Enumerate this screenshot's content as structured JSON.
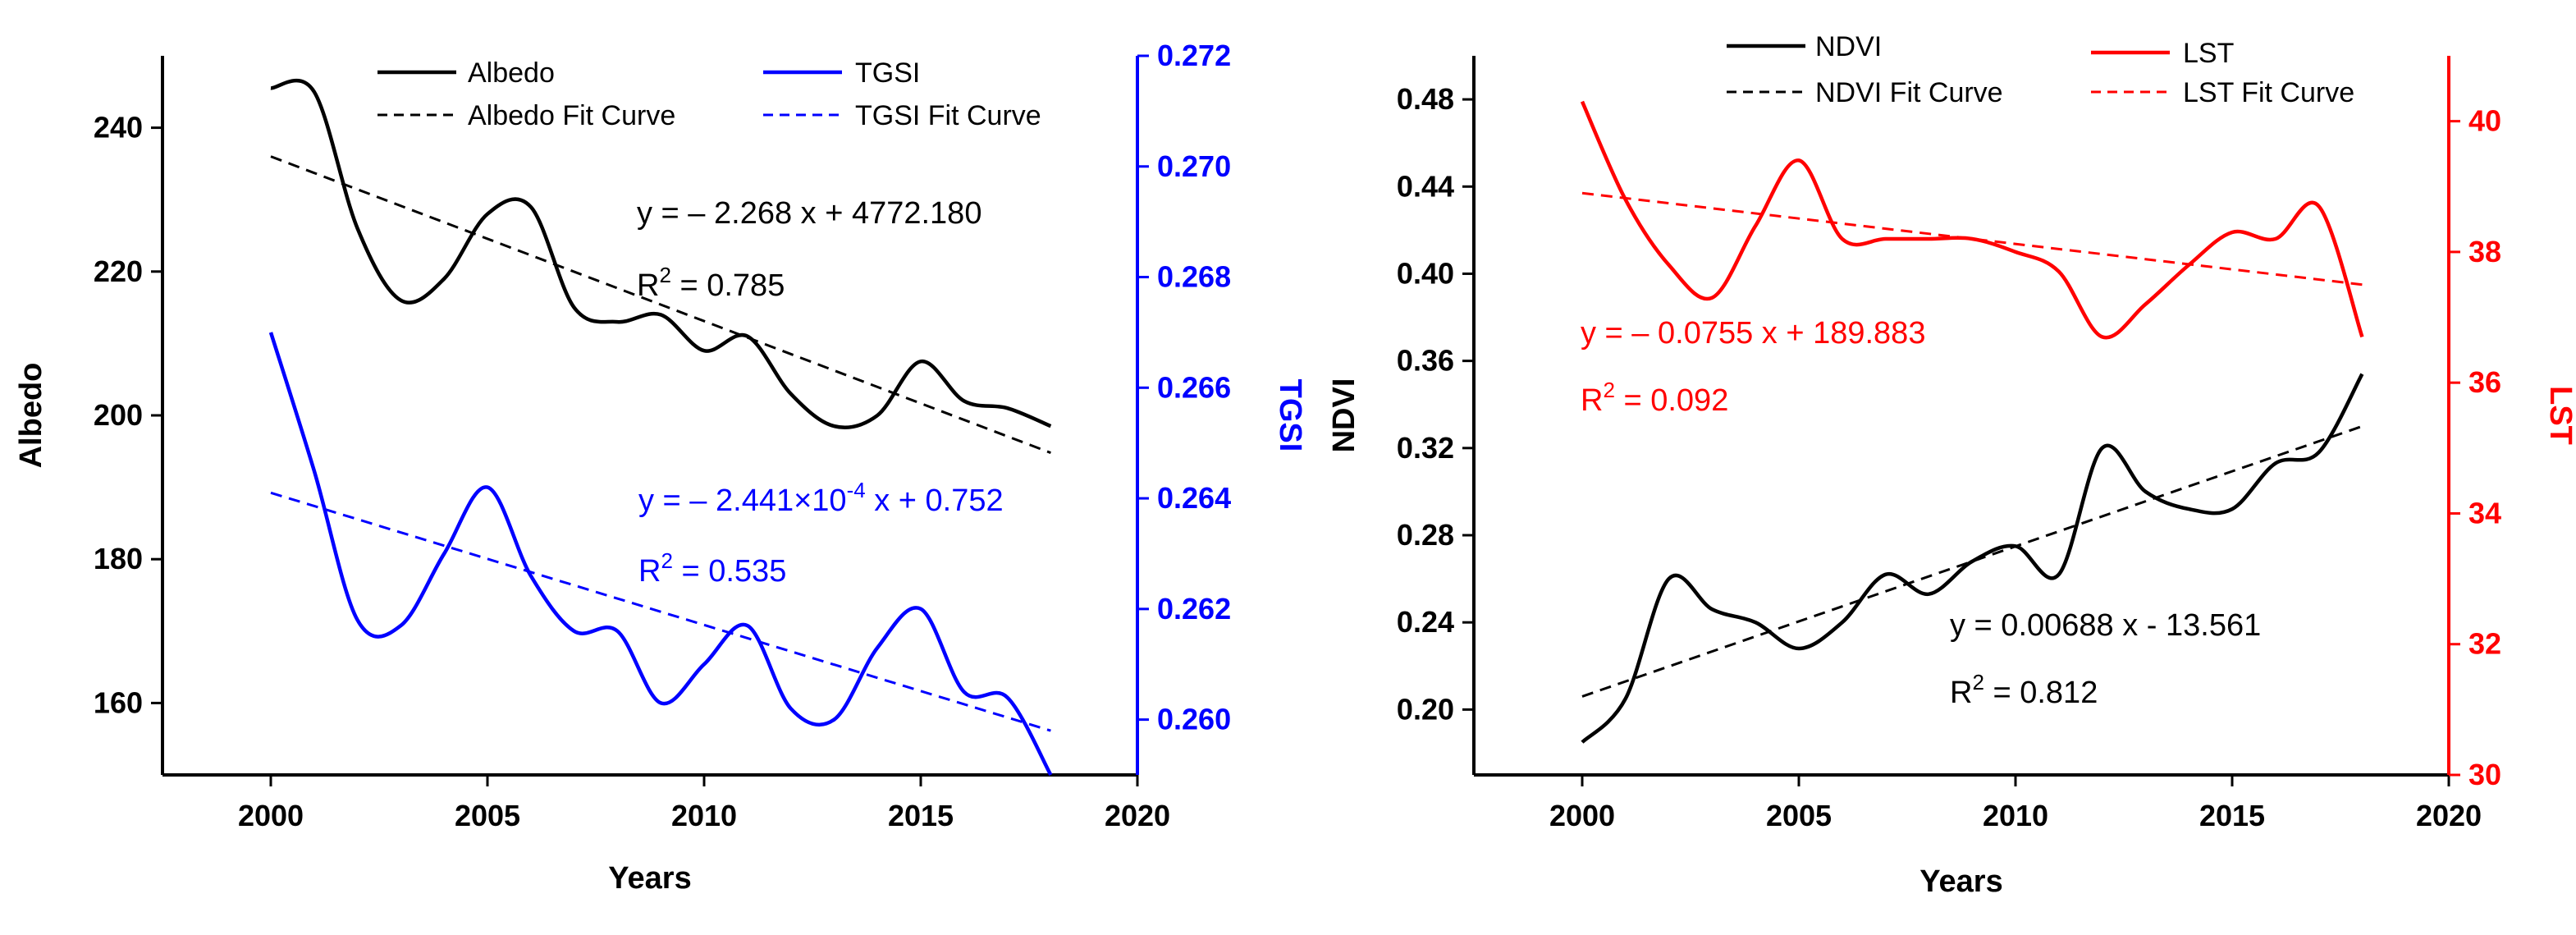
{
  "chart_data": [
    {
      "type": "line",
      "xlabel": "Years",
      "ylabel": "Albedo",
      "y2label": "TGSI",
      "xlim": [
        1997.5,
        2020
      ],
      "ylim": [
        150,
        250
      ],
      "y2lim": [
        0.259,
        0.272
      ],
      "xticks": [
        2000,
        2005,
        2010,
        2015,
        2020
      ],
      "yticks": [
        160,
        180,
        200,
        220,
        240
      ],
      "y2ticks": [
        "0.260",
        "0.262",
        "0.264",
        "0.266",
        "0.268",
        "0.270",
        "0.272"
      ],
      "legend_position": "top",
      "series": [
        {
          "name": "Albedo",
          "axis": "left",
          "style": "solid",
          "color": "#000000",
          "x": [
            2000,
            2001,
            2002,
            2003,
            2004,
            2005,
            2006,
            2007,
            2008,
            2009,
            2010,
            2011,
            2012,
            2013,
            2014,
            2015,
            2016,
            2017,
            2018
          ],
          "values": [
            245.5,
            245,
            226,
            216,
            219,
            228,
            229,
            215,
            213,
            214,
            209,
            211,
            203,
            198.5,
            200,
            207.5,
            202,
            201,
            198.5
          ]
        },
        {
          "name": "Albedo Fit Curve",
          "axis": "left",
          "style": "dashed",
          "color": "#000000",
          "x": [
            2000,
            2018
          ],
          "values": [
            236,
            194.8
          ]
        },
        {
          "name": "TGSI",
          "axis": "right",
          "style": "solid",
          "color": "#0000ff",
          "x": [
            2000,
            2001,
            2002,
            2003,
            2004,
            2005,
            2006,
            2007,
            2008,
            2009,
            2010,
            2011,
            2012,
            2013,
            2014,
            2015,
            2016,
            2017,
            2018
          ],
          "values": [
            0.267,
            0.2645,
            0.2618,
            0.2617,
            0.263,
            0.2642,
            0.2626,
            0.2616,
            0.2616,
            0.2603,
            0.261,
            0.2617,
            0.2602,
            0.26,
            0.2613,
            0.262,
            0.2605,
            0.2604,
            0.259
          ]
        },
        {
          "name": "TGSI Fit Curve",
          "axis": "right",
          "style": "dashed",
          "color": "#0000ff",
          "x": [
            2000,
            2018
          ],
          "values": [
            0.2641,
            0.2598
          ]
        }
      ],
      "annotations": [
        {
          "text": "y = – 2.268 x + 4772.180",
          "color": "#000000"
        },
        {
          "text": "R",
          "sup": "2",
          "rest": " = 0.785",
          "color": "#000000"
        },
        {
          "text": "y = – 2.441×10",
          "sup": "-4",
          "rest": " x + 0.752",
          "color": "#0000ff"
        },
        {
          "text": "R",
          "sup": "2",
          "rest": " = 0.535",
          "color": "#0000ff"
        }
      ],
      "colors": {
        "left_axis": "#000000",
        "right_axis": "#0000ff"
      }
    },
    {
      "type": "line",
      "xlabel": "Years",
      "ylabel": "NDVI",
      "y2label": "LST",
      "xlim": [
        1997.5,
        2020
      ],
      "ylim": [
        0.17,
        0.5
      ],
      "y2lim": [
        30,
        41
      ],
      "xticks": [
        2000,
        2005,
        2010,
        2015,
        2020
      ],
      "yticks": [
        "0.20",
        "0.24",
        "0.28",
        "0.32",
        "0.36",
        "0.40",
        "0.44",
        "0.48"
      ],
      "y2ticks": [
        30,
        32,
        34,
        36,
        38,
        40
      ],
      "legend_position": "top",
      "series": [
        {
          "name": "NDVI",
          "axis": "left",
          "style": "solid",
          "color": "#000000",
          "x": [
            2000,
            2001,
            2002,
            2003,
            2004,
            2005,
            2006,
            2007,
            2008,
            2009,
            2010,
            2011,
            2012,
            2013,
            2014,
            2015,
            2016,
            2017,
            2018
          ],
          "values": [
            0.185,
            0.205,
            0.26,
            0.246,
            0.24,
            0.228,
            0.24,
            0.262,
            0.253,
            0.268,
            0.275,
            0.262,
            0.32,
            0.3,
            0.292,
            0.292,
            0.313,
            0.318,
            0.354
          ]
        },
        {
          "name": "NDVI Fit Curve",
          "axis": "left",
          "style": "dashed",
          "color": "#000000",
          "x": [
            2000,
            2018
          ],
          "values": [
            0.206,
            0.33
          ]
        },
        {
          "name": "LST",
          "axis": "right",
          "style": "solid",
          "color": "#ff0000",
          "x": [
            2000,
            2001,
            2002,
            2003,
            2004,
            2005,
            2006,
            2007,
            2008,
            2009,
            2010,
            2011,
            2012,
            2013,
            2014,
            2015,
            2016,
            2017,
            2018
          ],
          "values": [
            40.3,
            38.8,
            37.8,
            37.3,
            38.4,
            39.4,
            38.2,
            38.2,
            38.2,
            38.2,
            38.0,
            37.7,
            36.7,
            37.2,
            37.8,
            38.3,
            38.2,
            38.7,
            36.7
          ]
        },
        {
          "name": "LST Fit Curve",
          "axis": "right",
          "style": "dashed",
          "color": "#ff0000",
          "x": [
            2000,
            2018
          ],
          "values": [
            38.9,
            37.5
          ]
        }
      ],
      "annotations": [
        {
          "text": "y = – 0.0755 x + 189.883",
          "color": "#ff0000"
        },
        {
          "text": "R",
          "sup": "2",
          "rest": " = 0.092",
          "color": "#ff0000"
        },
        {
          "text": "y = 0.00688 x - 13.561",
          "color": "#000000"
        },
        {
          "text": "R",
          "sup": "2",
          "rest": " = 0.812",
          "color": "#000000"
        }
      ],
      "colors": {
        "left_axis": "#000000",
        "right_axis": "#ff0000"
      }
    }
  ]
}
